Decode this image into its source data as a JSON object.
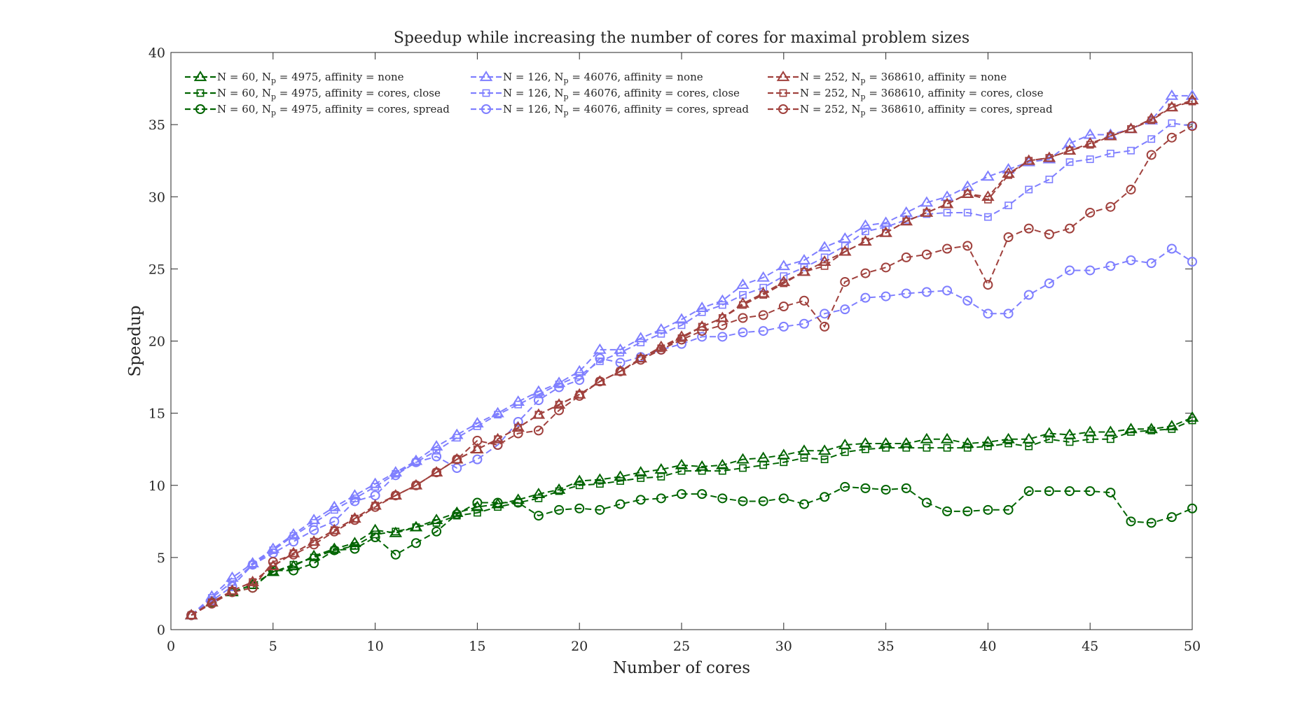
{
  "chart_data": {
    "type": "line",
    "title": "Speedup while increasing the number of cores for maximal problem sizes",
    "xlabel": "Number of cores",
    "ylabel": "Speedup",
    "xlim": [
      0,
      50
    ],
    "ylim": [
      0,
      40
    ],
    "xticks": [
      0,
      5,
      10,
      15,
      20,
      25,
      30,
      35,
      40,
      45,
      50
    ],
    "yticks": [
      0,
      5,
      10,
      15,
      20,
      25,
      30,
      35,
      40
    ],
    "grid": false,
    "legend_position": "top-left, 3 columns",
    "x": [
      1,
      2,
      3,
      4,
      5,
      6,
      7,
      8,
      9,
      10,
      11,
      12,
      13,
      14,
      15,
      16,
      17,
      18,
      19,
      20,
      21,
      22,
      23,
      24,
      25,
      26,
      27,
      28,
      29,
      30,
      31,
      32,
      33,
      34,
      35,
      36,
      37,
      38,
      39,
      40,
      41,
      42,
      43,
      44,
      45,
      46,
      47,
      48,
      49,
      50
    ],
    "series": [
      {
        "legend_prefix": "N = 60, N",
        "legend_sub": "p",
        "legend_suffix": " = 4975, affinity = none",
        "color": "#006400",
        "marker": "triangle",
        "values": [
          1.0,
          1.9,
          2.6,
          3.1,
          4.0,
          4.4,
          5.1,
          5.6,
          6.0,
          6.9,
          6.7,
          7.1,
          7.6,
          8.1,
          8.5,
          8.7,
          9.0,
          9.4,
          9.7,
          10.3,
          10.4,
          10.6,
          10.9,
          11.1,
          11.4,
          11.3,
          11.4,
          11.8,
          11.9,
          12.1,
          12.4,
          12.4,
          12.8,
          12.9,
          12.9,
          12.9,
          13.2,
          13.2,
          12.9,
          13.0,
          13.2,
          13.2,
          13.6,
          13.5,
          13.7,
          13.7,
          13.9,
          13.9,
          14.1,
          14.7
        ]
      },
      {
        "legend_prefix": "N = 60, N",
        "legend_sub": "p",
        "legend_suffix": " = 4975, affinity = cores, close",
        "color": "#006400",
        "marker": "square",
        "values": [
          1.0,
          1.9,
          2.6,
          3.1,
          4.0,
          4.5,
          5.0,
          5.5,
          5.8,
          6.6,
          6.8,
          7.1,
          7.4,
          7.9,
          8.1,
          8.5,
          8.8,
          9.1,
          9.6,
          10.0,
          10.1,
          10.3,
          10.5,
          10.6,
          11.0,
          11.0,
          11.0,
          11.2,
          11.4,
          11.6,
          11.9,
          11.8,
          12.3,
          12.5,
          12.6,
          12.6,
          12.6,
          12.6,
          12.6,
          12.7,
          12.9,
          12.7,
          13.2,
          13.0,
          13.2,
          13.2,
          13.7,
          13.8,
          13.9,
          14.5
        ]
      },
      {
        "legend_prefix": "N = 60, N",
        "legend_sub": "p",
        "legend_suffix": " = 4975, affinity = cores, spread",
        "color": "#006400",
        "marker": "circle",
        "values": [
          1.0,
          1.9,
          2.6,
          2.9,
          4.1,
          4.1,
          4.6,
          5.5,
          5.6,
          6.4,
          5.2,
          6.0,
          6.8,
          8.0,
          8.8,
          8.8,
          8.8,
          7.9,
          8.3,
          8.4,
          8.3,
          8.7,
          9.0,
          9.1,
          9.4,
          9.4,
          9.1,
          8.9,
          8.9,
          9.1,
          8.7,
          9.2,
          9.9,
          9.8,
          9.7,
          9.8,
          8.8,
          8.2,
          8.2,
          8.3,
          8.3,
          9.6,
          9.6,
          9.6,
          9.6,
          9.5,
          7.5,
          7.4,
          7.8,
          8.4
        ]
      },
      {
        "legend_prefix": "N = 126, N",
        "legend_sub": "p",
        "legend_suffix": " = 46076, affinity = none",
        "color": "#7F7FFF",
        "marker": "triangle",
        "values": [
          1.0,
          2.3,
          3.6,
          4.6,
          5.6,
          6.6,
          7.6,
          8.5,
          9.3,
          10.1,
          10.9,
          11.7,
          12.7,
          13.5,
          14.3,
          15.0,
          15.8,
          16.5,
          17.1,
          17.9,
          19.4,
          19.4,
          20.2,
          20.8,
          21.5,
          22.3,
          22.8,
          23.9,
          24.4,
          25.2,
          25.6,
          26.5,
          27.1,
          28.0,
          28.2,
          28.9,
          29.6,
          30.0,
          30.7,
          31.4,
          31.9,
          32.4,
          32.6,
          33.7,
          34.3,
          34.3,
          34.7,
          35.3,
          37.0,
          37.0
        ]
      },
      {
        "legend_prefix": "N = 126, N",
        "legend_sub": "p",
        "legend_suffix": " = 46076, affinity = cores, close",
        "color": "#7F7FFF",
        "marker": "square",
        "values": [
          1.0,
          2.2,
          3.3,
          4.5,
          5.5,
          6.5,
          7.4,
          8.3,
          9.1,
          9.9,
          10.8,
          11.6,
          12.4,
          13.3,
          14.1,
          14.9,
          15.6,
          16.3,
          17.0,
          17.6,
          18.6,
          19.2,
          19.9,
          20.5,
          21.1,
          22.0,
          22.5,
          23.2,
          23.7,
          24.5,
          25.1,
          25.8,
          26.6,
          27.6,
          27.9,
          28.4,
          28.8,
          28.9,
          28.9,
          28.6,
          29.4,
          30.5,
          31.2,
          32.4,
          32.6,
          33.0,
          33.2,
          34.0,
          35.1,
          34.9
        ]
      },
      {
        "legend_prefix": "N = 126, N",
        "legend_sub": "p",
        "legend_suffix": " = 46076, affinity = cores, spread",
        "color": "#7F7FFF",
        "marker": "circle",
        "values": [
          1.0,
          2.0,
          3.0,
          4.5,
          5.3,
          6.1,
          6.9,
          7.5,
          8.9,
          9.3,
          10.7,
          11.6,
          12.0,
          11.2,
          11.8,
          12.8,
          14.4,
          15.9,
          16.8,
          17.3,
          18.8,
          18.5,
          18.9,
          19.4,
          19.8,
          20.3,
          20.3,
          20.6,
          20.7,
          21.0,
          21.2,
          21.9,
          22.2,
          23.0,
          23.1,
          23.3,
          23.4,
          23.5,
          22.8,
          21.9,
          21.9,
          23.2,
          24.0,
          24.9,
          24.9,
          25.2,
          25.6,
          25.4,
          26.4,
          25.5
        ]
      },
      {
        "legend_prefix": "N = 252, N",
        "legend_sub": "p",
        "legend_suffix": " = 368610, affinity = none",
        "color": "#A0413D",
        "marker": "triangle",
        "values": [
          1.0,
          1.9,
          2.7,
          3.3,
          4.4,
          5.3,
          6.1,
          6.9,
          7.7,
          8.6,
          9.3,
          10.0,
          10.9,
          11.8,
          12.5,
          13.2,
          14.0,
          14.9,
          15.6,
          16.3,
          17.2,
          17.9,
          18.8,
          19.6,
          20.3,
          21.0,
          21.6,
          22.6,
          23.3,
          24.1,
          24.8,
          25.5,
          26.2,
          26.9,
          27.5,
          28.3,
          28.9,
          29.5,
          30.2,
          30.0,
          31.6,
          32.5,
          32.7,
          33.2,
          33.7,
          34.2,
          34.7,
          35.4,
          36.2,
          36.7
        ]
      },
      {
        "legend_prefix": "N = 252, N",
        "legend_sub": "p",
        "legend_suffix": " = 368610, affinity = cores, close",
        "color": "#A0413D",
        "marker": "square",
        "values": [
          1.0,
          1.9,
          2.7,
          3.3,
          4.4,
          5.3,
          6.1,
          6.9,
          7.7,
          8.6,
          9.3,
          10.0,
          10.9,
          11.8,
          12.5,
          13.2,
          14.0,
          14.9,
          15.6,
          16.3,
          17.2,
          17.9,
          18.8,
          19.5,
          20.2,
          21.0,
          21.6,
          22.5,
          23.2,
          24.0,
          24.8,
          25.2,
          26.2,
          26.9,
          27.5,
          28.3,
          28.9,
          29.5,
          30.2,
          29.8,
          31.5,
          32.5,
          32.7,
          33.2,
          33.6,
          34.2,
          34.7,
          35.3,
          36.2,
          36.6
        ]
      },
      {
        "legend_prefix": "N = 252, N",
        "legend_sub": "p",
        "legend_suffix": " = 368610, affinity = cores, spread",
        "color": "#A0413D",
        "marker": "circle",
        "values": [
          1.0,
          1.8,
          2.6,
          2.9,
          4.7,
          5.2,
          5.9,
          6.8,
          7.6,
          8.5,
          9.3,
          10.0,
          10.9,
          11.8,
          13.1,
          12.8,
          13.6,
          13.8,
          15.2,
          16.2,
          17.2,
          17.9,
          18.7,
          19.4,
          20.1,
          20.7,
          21.1,
          21.6,
          21.8,
          22.4,
          22.8,
          21.0,
          24.1,
          24.7,
          25.1,
          25.8,
          26.0,
          26.4,
          26.6,
          23.9,
          27.2,
          27.8,
          27.4,
          27.8,
          28.9,
          29.3,
          30.5,
          32.9,
          34.1,
          34.9
        ]
      }
    ]
  }
}
